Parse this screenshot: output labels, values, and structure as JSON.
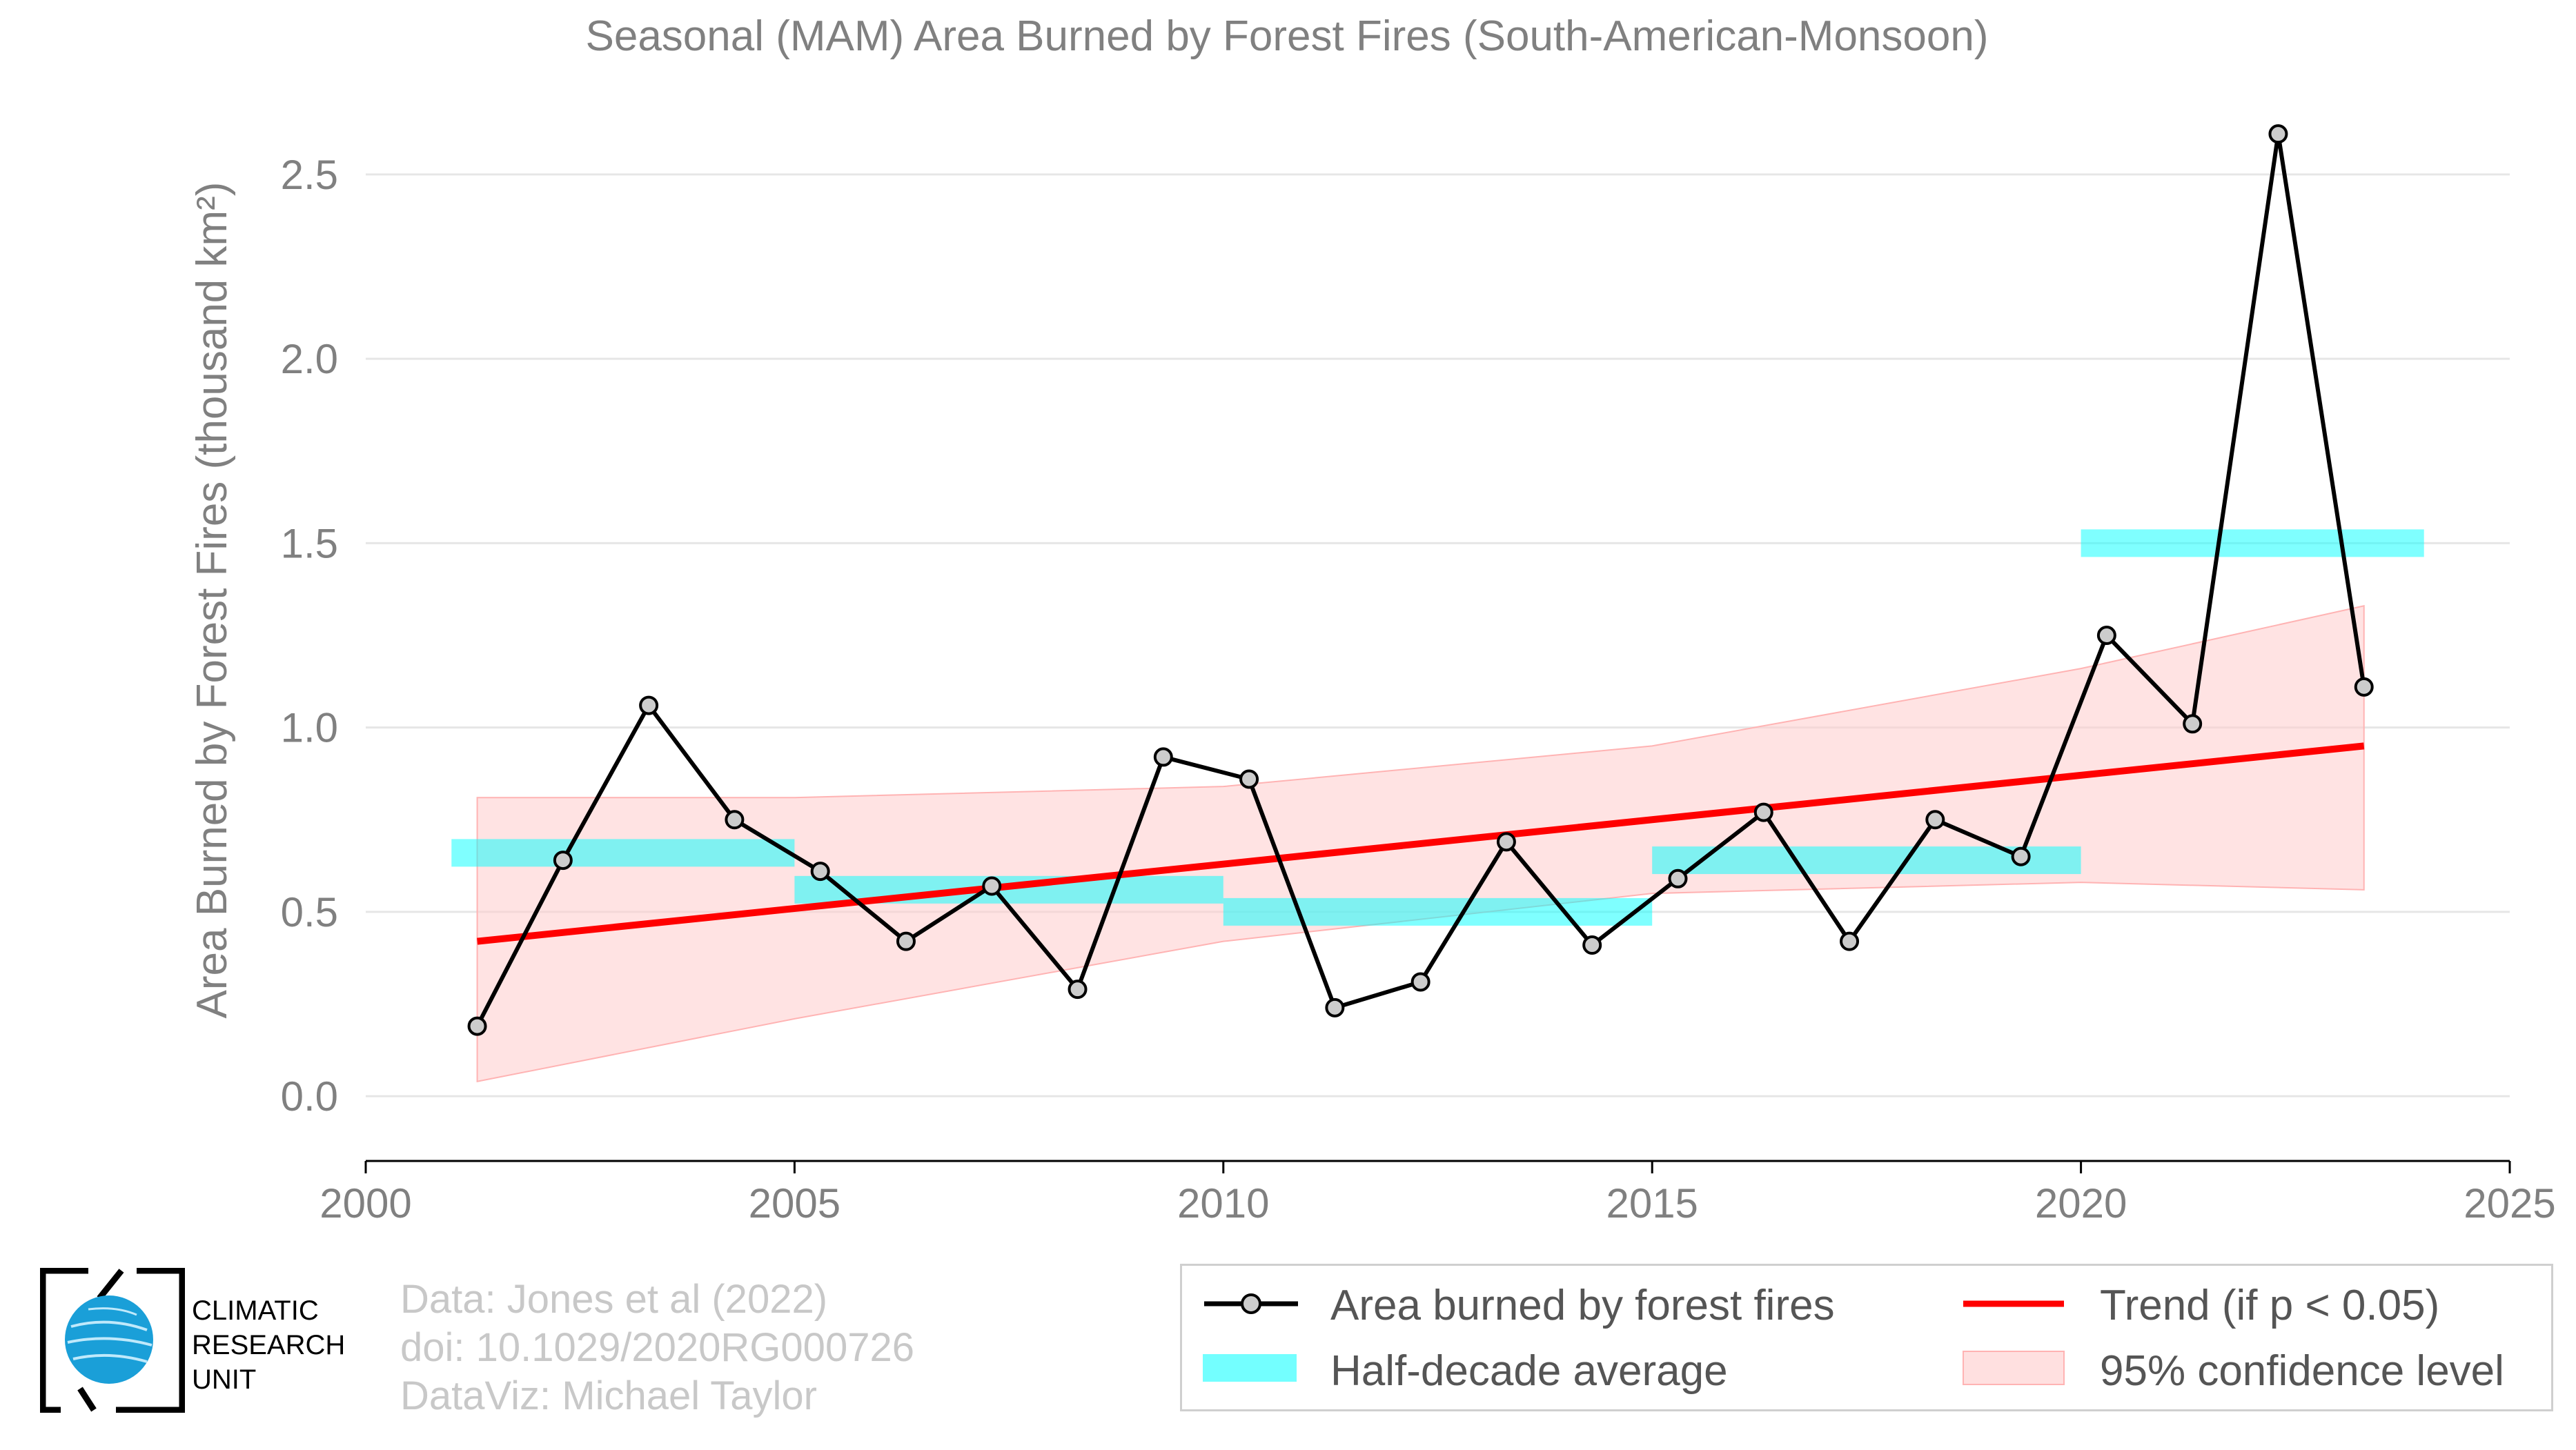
{
  "chart_data": {
    "type": "line",
    "title": "Seasonal (MAM) Area Burned by Forest Fires (South-American-Monsoon)",
    "xlabel": "",
    "ylabel": "Area Burned by Forest Fires (thousand km²)",
    "xlim": [
      2000,
      2025
    ],
    "ylim": [
      -0.17,
      2.73
    ],
    "xticks": [
      2000,
      2005,
      2010,
      2015,
      2020,
      2025
    ],
    "yticks": [
      0.0,
      0.5,
      1.0,
      1.5,
      2.0,
      2.5
    ],
    "ytick_labels": [
      "0.0",
      "0.5",
      "1.0",
      "1.5",
      "2.0",
      "2.5"
    ],
    "grid": "horizontal",
    "legend_position": "bottom-right",
    "series": [
      {
        "name": "Area burned by forest fires",
        "color": "#000000",
        "x": [
          2001.3,
          2002.3,
          2003.3,
          2004.3,
          2005.3,
          2006.3,
          2007.3,
          2008.3,
          2009.3,
          2010.3,
          2011.3,
          2012.3,
          2013.3,
          2014.3,
          2015.3,
          2016.3,
          2017.3,
          2018.3,
          2019.3,
          2020.3,
          2021.3,
          2022.3,
          2023.3
        ],
        "y": [
          0.19,
          0.64,
          1.06,
          0.75,
          0.61,
          0.42,
          0.57,
          0.29,
          0.92,
          0.86,
          0.24,
          0.31,
          0.69,
          0.41,
          0.59,
          0.77,
          0.42,
          0.75,
          0.65,
          1.25,
          1.01,
          2.61,
          1.11
        ]
      }
    ],
    "half_decade_average": {
      "name": "Half-decade average",
      "color": "#00ffff",
      "segments": [
        {
          "x0": 2001,
          "x1": 2005,
          "y": 0.66
        },
        {
          "x0": 2005,
          "x1": 2010,
          "y": 0.56
        },
        {
          "x0": 2010,
          "x1": 2015,
          "y": 0.5
        },
        {
          "x0": 2015,
          "x1": 2020,
          "y": 0.64
        },
        {
          "x0": 2020,
          "x1": 2024,
          "y": 1.5
        }
      ]
    },
    "trend": {
      "name": "Trend (if p < 0.05)",
      "color": "#ff0000",
      "x": [
        2001.3,
        2023.3
      ],
      "y": [
        0.42,
        0.95
      ]
    },
    "confidence_band": {
      "name": "95% confidence level",
      "color": "#ffcccc",
      "x": [
        2001.3,
        2005,
        2010,
        2015,
        2020,
        2023.3
      ],
      "upper": [
        0.81,
        0.81,
        0.84,
        0.95,
        1.16,
        1.33
      ],
      "lower": [
        0.04,
        0.21,
        0.42,
        0.55,
        0.58,
        0.56
      ]
    }
  },
  "credits": {
    "line1": "Data: Jones et al (2022)",
    "line2": "doi: 10.1029/2020RG000726",
    "line3": "DataViz: Michael Taylor"
  },
  "logo": {
    "line1": "CLIMATIC",
    "line2": "RESEARCH",
    "line3": "UNIT"
  },
  "legend": {
    "series_label": "Area burned by forest fires",
    "trend_label": "Trend (if p < 0.05)",
    "avg_label": "Half-decade average",
    "band_label": "95% confidence level"
  }
}
